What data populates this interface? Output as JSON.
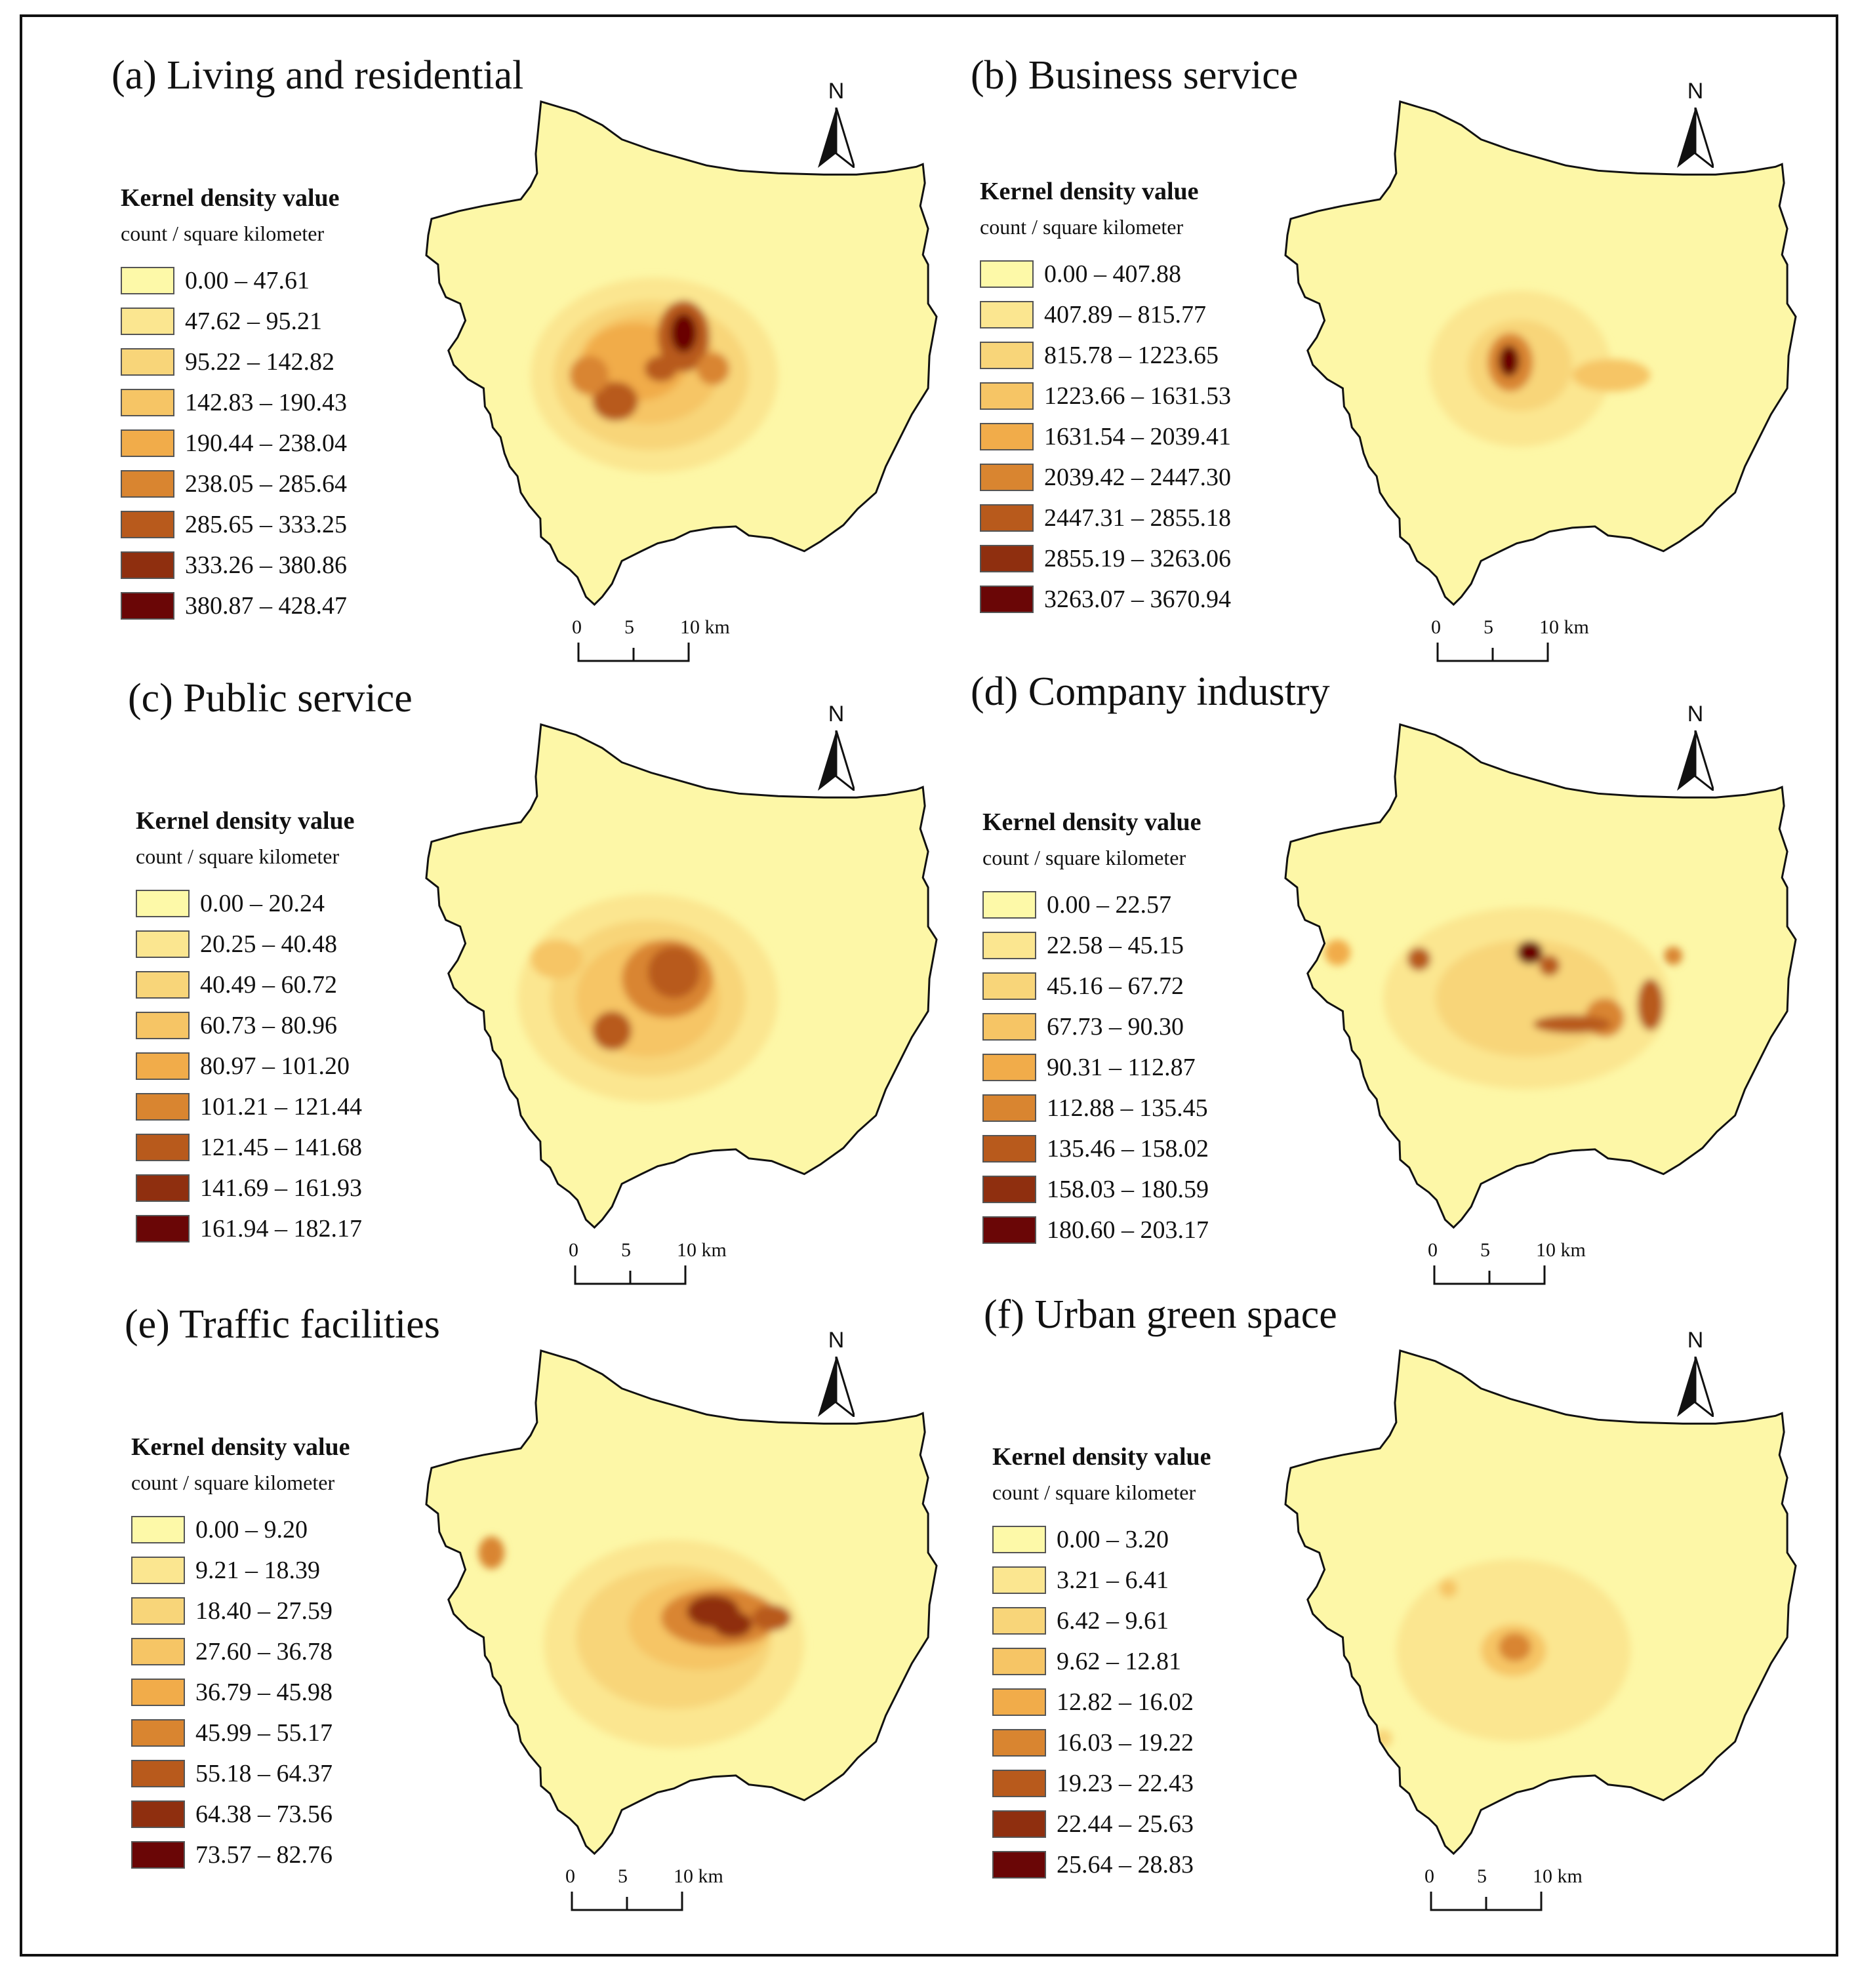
{
  "legend_title": "Kernel density value",
  "legend_unit": "count / square kilometer",
  "north_label": "N",
  "scale": {
    "labels": [
      "0",
      "5",
      "10 km"
    ]
  },
  "class_colors": [
    "#fdf9a8",
    "#fbe690",
    "#f8d579",
    "#f6c565",
    "#f1ac4a",
    "#d98530",
    "#b85a1c",
    "#8f2f0f",
    "#6a0606"
  ],
  "base_color": "#fdf7a7",
  "outline_color": "#111111",
  "panels": [
    {
      "title": "(a) Living and residential",
      "classes": [
        "0.00 – 47.61",
        "47.62 – 95.21",
        "95.22 – 142.82",
        "142.83 – 190.43",
        "190.44 – 238.04",
        "238.05 – 285.64",
        "285.65 – 333.25",
        "333.26 – 380.86",
        "380.87 – 428.47"
      ]
    },
    {
      "title": "(b) Business service",
      "classes": [
        "0.00 – 407.88",
        "407.89 – 815.77",
        "815.78 – 1223.65",
        "1223.66 – 1631.53",
        "1631.54 – 2039.41",
        "2039.42 – 2447.30",
        "2447.31 – 2855.18",
        "2855.19 – 3263.06",
        "3263.07 – 3670.94"
      ]
    },
    {
      "title": "(c) Public service",
      "classes": [
        "0.00 – 20.24",
        "20.25 – 40.48",
        "40.49 – 60.72",
        "60.73 – 80.96",
        "80.97 – 101.20",
        "101.21 – 121.44",
        "121.45 – 141.68",
        "141.69 – 161.93",
        "161.94 – 182.17"
      ]
    },
    {
      "title": "(d) Company industry",
      "classes": [
        "0.00 – 22.57",
        "22.58 – 45.15",
        "45.16 – 67.72",
        "67.73 – 90.30",
        "90.31 – 112.87",
        "112.88 – 135.45",
        "135.46 – 158.02",
        "158.03 – 180.59",
        "180.60 – 203.17"
      ]
    },
    {
      "title": "(e) Traffic facilities",
      "classes": [
        "0.00 – 9.20",
        "9.21 – 18.39",
        "18.40 – 27.59",
        "27.60 – 36.78",
        "36.79 – 45.98",
        "45.99 – 55.17",
        "55.18 – 64.37",
        "64.38 – 73.56",
        "73.57 – 82.76"
      ]
    },
    {
      "title": "(f) Urban green space",
      "classes": [
        "0.00 – 3.20",
        "3.21 – 6.41",
        "6.42 – 9.61",
        "9.62 – 12.81",
        "12.82 – 16.02",
        "16.03 – 19.22",
        "19.23 – 22.43",
        "22.44 – 25.63",
        "25.64 – 28.83"
      ]
    }
  ]
}
